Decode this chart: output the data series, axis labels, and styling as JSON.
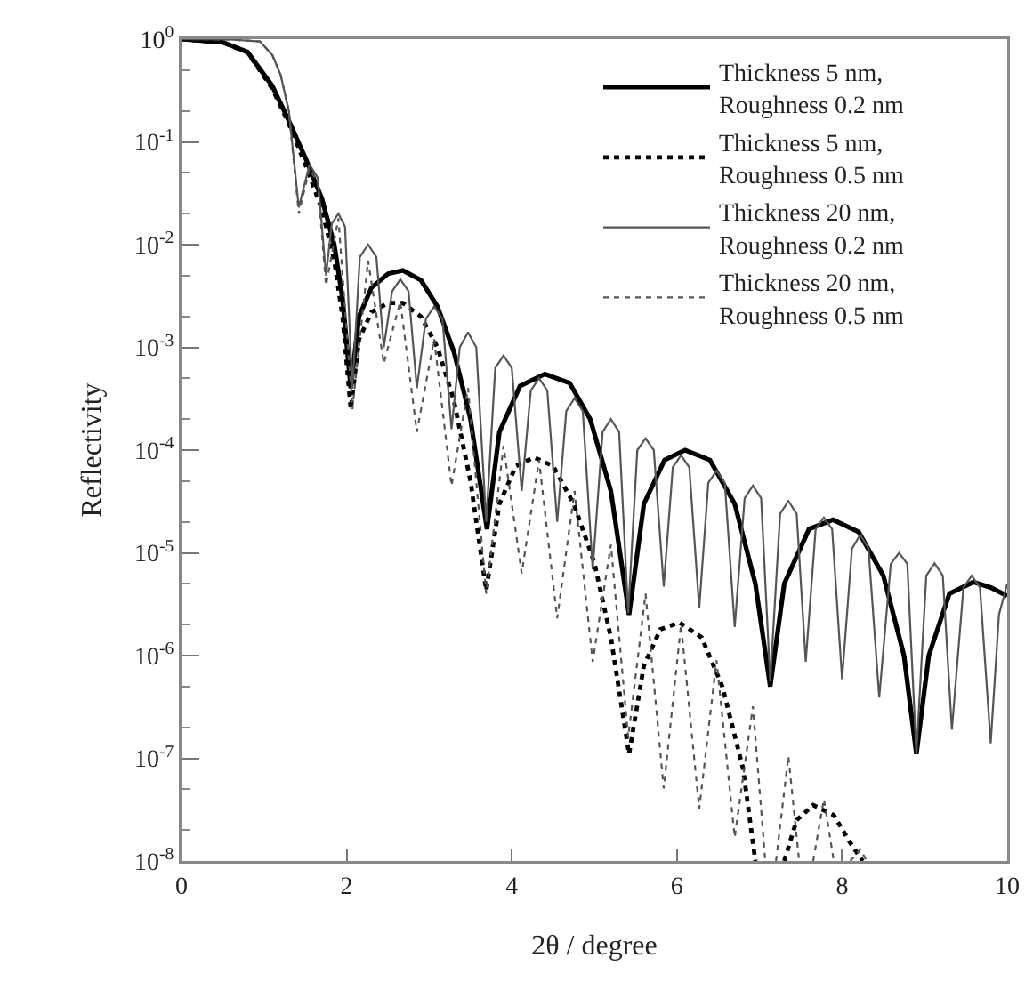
{
  "chart_data": {
    "type": "line",
    "xlabel": "2θ / degree",
    "ylabel": "Reflectivity",
    "xlim": [
      0,
      10
    ],
    "xticks": [
      0,
      2,
      4,
      6,
      8,
      10
    ],
    "ylim": [
      1e-08,
      1
    ],
    "yticks": [
      {
        "value": 1e-08,
        "label": "10$^{-8}$"
      },
      {
        "value": 1e-07,
        "label": "10$^{-7}$"
      },
      {
        "value": 1e-06,
        "label": "10$^{-6}$"
      },
      {
        "value": 1e-05,
        "label": "10$^{-5}$"
      },
      {
        "value": 0.0001,
        "label": "10$^{-4}$"
      },
      {
        "value": 0.001,
        "label": "10$^{-3}$"
      },
      {
        "value": 0.01,
        "label": "10$^{-2}$"
      },
      {
        "value": 0.1,
        "label": "10$^{-1}$"
      },
      {
        "value": 1,
        "label": "10$^{0}$"
      }
    ],
    "log": "y",
    "grid": false,
    "legend": "top right",
    "marker": "none",
    "series": [
      {
        "name": "Thickness 5 nm,\nRoughness 0.2 nm",
        "color": "#000000",
        "line_style": "solid",
        "x": [
          0,
          0.5,
          0.8,
          1.1,
          1.3,
          1.5,
          1.7,
          1.85,
          1.95,
          2.05,
          2.15,
          2.3,
          2.5,
          2.68,
          2.9,
          3.1,
          3.3,
          3.5,
          3.7,
          3.85,
          4.1,
          4.4,
          4.7,
          4.95,
          5.2,
          5.42,
          5.6,
          5.85,
          6.1,
          6.4,
          6.7,
          6.95,
          7.13,
          7.3,
          7.6,
          7.89,
          8.2,
          8.5,
          8.75,
          8.9,
          9.05,
          9.3,
          9.59,
          9.8,
          10
        ],
        "values": [
          1,
          0.93,
          0.75,
          0.35,
          0.16,
          0.07,
          0.028,
          0.01,
          0.003,
          0.0004,
          0.002,
          0.0038,
          0.0052,
          0.0056,
          0.0045,
          0.0025,
          0.0009,
          0.0002,
          1.7e-05,
          0.00015,
          0.00042,
          0.00055,
          0.00045,
          0.0002,
          4e-05,
          2.5e-06,
          3e-05,
          8e-05,
          0.0001,
          8e-05,
          3e-05,
          5e-06,
          5e-07,
          5e-06,
          1.7e-05,
          2.1e-05,
          1.6e-05,
          6e-06,
          1e-06,
          1.1e-07,
          1e-06,
          4e-06,
          5.2e-06,
          4.6e-06,
          3.8e-06
        ]
      },
      {
        "name": "Thickness 5 nm,\nRoughness 0.5 nm",
        "color": "#000000",
        "line_style": "dotted",
        "x": [
          0,
          0.5,
          0.8,
          1.1,
          1.3,
          1.5,
          1.7,
          1.85,
          1.95,
          2.05,
          2.15,
          2.3,
          2.5,
          2.68,
          2.9,
          3.1,
          3.3,
          3.5,
          3.69,
          3.85,
          4.05,
          4.27,
          4.5,
          4.75,
          5.0,
          5.2,
          5.42,
          5.6,
          5.8,
          6.03,
          6.3,
          6.55,
          6.8,
          6.95,
          7.12,
          7.3,
          7.45,
          7.65,
          7.9,
          8.1,
          8.25
        ],
        "values": [
          1,
          0.93,
          0.74,
          0.33,
          0.15,
          0.06,
          0.022,
          0.007,
          0.002,
          0.00025,
          0.0012,
          0.0022,
          0.0027,
          0.0027,
          0.002,
          0.001,
          0.0003,
          5e-05,
          4.3e-06,
          3e-05,
          7e-05,
          8.5e-05,
          7e-05,
          3e-05,
          8e-06,
          1.5e-06,
          1.1e-07,
          8e-07,
          1.8e-06,
          2.1e-06,
          1.5e-06,
          5e-07,
          8e-08,
          1e-08,
          null,
          1e-08,
          2.5e-08,
          3.5e-08,
          2.8e-08,
          1.5e-08,
          1e-08
        ]
      },
      {
        "name": "Thickness 20 nm,\nRoughness 0.2 nm",
        "color": "#555555",
        "line_style": "solid",
        "x": [
          0,
          0.6,
          0.95,
          1.1,
          1.2,
          1.3,
          1.42,
          1.55,
          1.65,
          1.75,
          1.82,
          1.9,
          1.98,
          2.07,
          2.16,
          2.26,
          2.36,
          2.45,
          2.55,
          2.65,
          2.75,
          2.85,
          2.96,
          3.06,
          3.16,
          3.27,
          3.37,
          3.47,
          3.57,
          3.69,
          3.8,
          3.9,
          4.0,
          4.12,
          4.23,
          4.33,
          4.43,
          4.55,
          4.66,
          4.76,
          4.86,
          4.98,
          5.1,
          5.2,
          5.3,
          5.41,
          5.52,
          5.62,
          5.72,
          5.84,
          5.95,
          6.05,
          6.15,
          6.27,
          6.38,
          6.48,
          6.58,
          6.7,
          6.82,
          6.92,
          7.02,
          7.13,
          7.25,
          7.35,
          7.45,
          7.56,
          7.68,
          7.78,
          7.88,
          8.0,
          8.12,
          8.22,
          8.32,
          8.45,
          8.59,
          8.69,
          8.79,
          8.9,
          9.02,
          9.12,
          9.22,
          9.33,
          9.47,
          9.57,
          9.67,
          9.8,
          9.9,
          10
        ],
        "values": [
          1,
          0.99,
          0.95,
          0.7,
          0.45,
          0.2,
          0.023,
          0.06,
          0.045,
          0.005,
          0.016,
          0.02,
          0.015,
          0.0004,
          0.0076,
          0.01,
          0.0076,
          0.001,
          0.0035,
          0.0046,
          0.0035,
          0.0004,
          0.0019,
          0.0025,
          0.0019,
          0.00016,
          0.001,
          0.0014,
          0.001,
          2e-05,
          0.00063,
          0.00083,
          0.00063,
          4e-05,
          0.00038,
          0.0005,
          0.00038,
          2e-05,
          0.00024,
          0.00032,
          0.00024,
          6.9e-06,
          0.00015,
          0.0002,
          0.00015,
          2.6e-06,
          0.0001,
          0.00013,
          0.0001,
          4.7e-06,
          6.8e-05,
          8.9e-05,
          6.8e-05,
          2.9e-06,
          4.8e-05,
          6.3e-05,
          4.8e-05,
          1.9e-06,
          3.4e-05,
          4.5e-05,
          3.4e-05,
          5.6e-07,
          2.4e-05,
          3.2e-05,
          2.4e-05,
          8.7e-07,
          1.7e-05,
          2.2e-05,
          1.7e-05,
          5.9e-07,
          1.1e-05,
          1.5e-05,
          1.1e-05,
          3.9e-07,
          7.8e-06,
          1e-05,
          7.8e-06,
          1.1e-07,
          6e-06,
          7.9e-06,
          6e-06,
          1.9e-07,
          4.6e-06,
          6e-06,
          4.6e-06,
          1.4e-07,
          2.5e-06,
          5e-06
        ]
      },
      {
        "name": "Thickness 20 nm,\nRoughness 0.5 nm",
        "color": "#555555",
        "line_style": "dotted",
        "x": [
          0,
          0.6,
          0.95,
          1.1,
          1.2,
          1.3,
          1.42,
          1.55,
          1.65,
          1.75,
          1.9,
          2.07,
          2.26,
          2.45,
          2.65,
          2.85,
          3.06,
          3.27,
          3.47,
          3.69,
          3.9,
          4.12,
          4.33,
          4.55,
          4.76,
          4.98,
          5.2,
          5.41,
          5.62,
          5.84,
          6.05,
          6.27,
          6.48,
          6.7,
          6.92,
          7.07,
          7.12,
          7.2,
          7.35,
          7.48,
          7.56,
          7.65,
          7.78,
          7.9,
          8.0,
          8.1,
          8.22,
          8.3
        ],
        "values": [
          1,
          0.99,
          0.95,
          0.7,
          0.45,
          0.2,
          0.02,
          0.055,
          0.04,
          0.004,
          0.018,
          0.00025,
          0.007,
          0.0007,
          0.0028,
          0.00015,
          0.0012,
          4.5e-05,
          0.0004,
          4e-06,
          0.00011,
          6.3e-06,
          8e-05,
          2.3e-06,
          4e-05,
          8.7e-07,
          1.2e-05,
          1.6e-07,
          4e-06,
          5.1e-08,
          2e-06,
          3.2e-08,
          9e-07,
          1.7e-08,
          3.2e-07,
          1e-08,
          null,
          1e-08,
          1.05e-07,
          1e-08,
          null,
          1e-08,
          4e-08,
          1e-08,
          null,
          1e-08,
          1.3e-08,
          1e-08
        ]
      }
    ]
  }
}
